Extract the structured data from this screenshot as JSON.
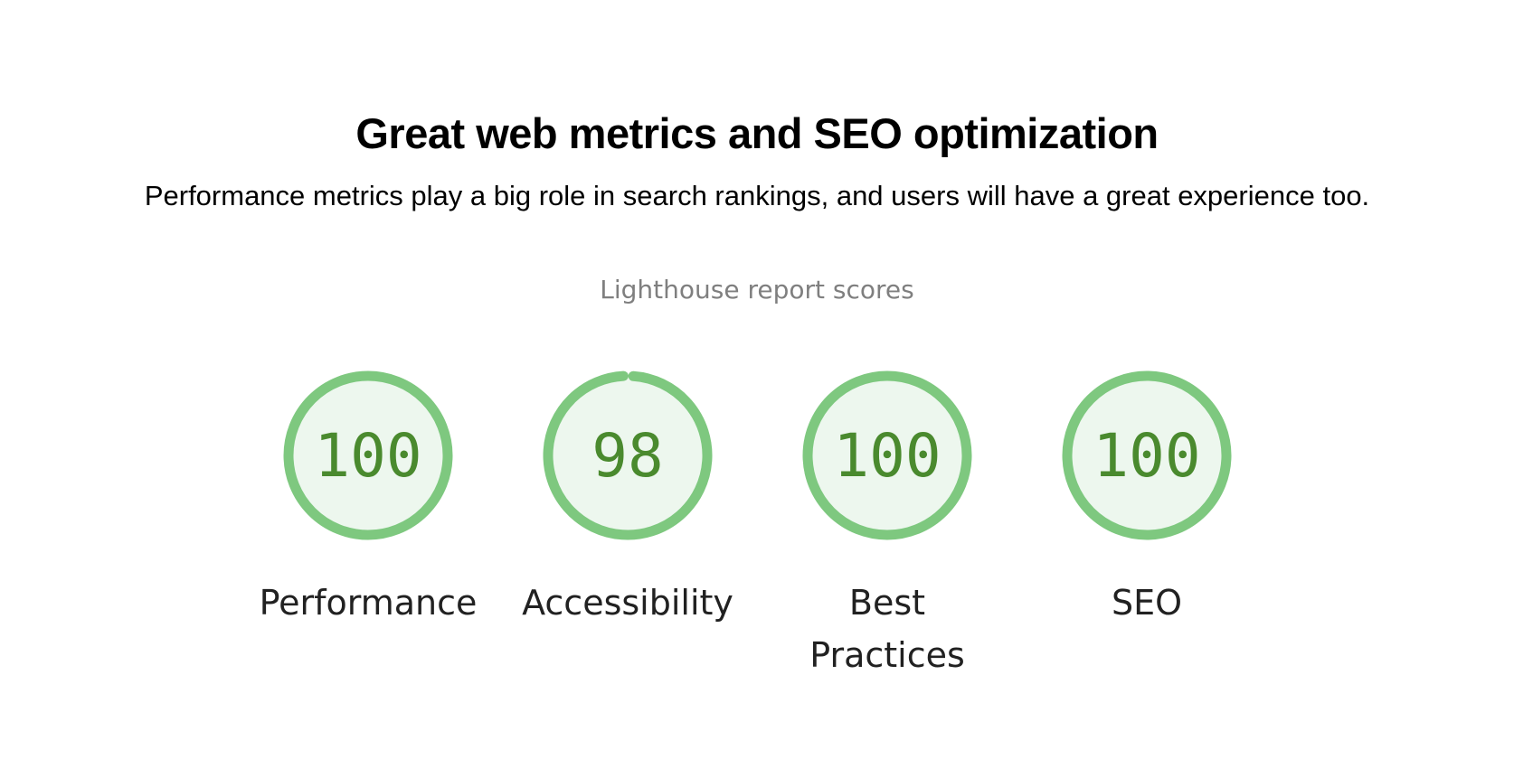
{
  "section": {
    "title": "Great web metrics and SEO optimization",
    "subtitle": "Performance metrics play a big role in search rankings, and users will have a great experience too."
  },
  "report": {
    "title": "Lighthouse report scores",
    "colors": {
      "ring": "#7ec87f",
      "fill": "#edf7ee",
      "score_text": "#4a8a2e",
      "label_text": "#212121"
    },
    "gauges": [
      {
        "label": "Performance",
        "score": "100",
        "value": 100
      },
      {
        "label": "Accessibility",
        "score": "98",
        "value": 98
      },
      {
        "label": "Best Practices",
        "score": "100",
        "value": 100
      },
      {
        "label": "SEO",
        "score": "100",
        "value": 100
      }
    ]
  }
}
